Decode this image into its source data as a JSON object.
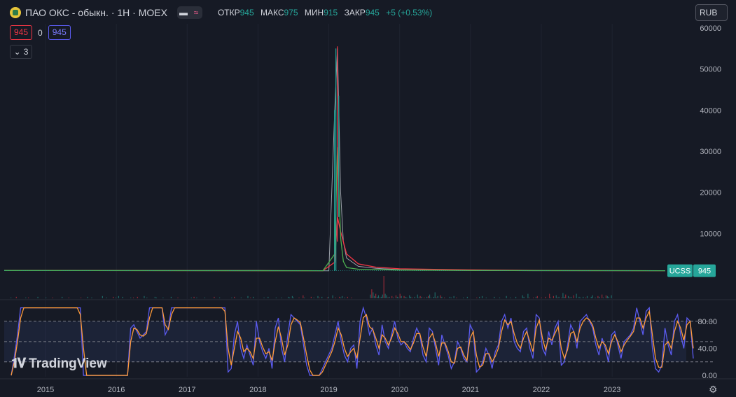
{
  "header": {
    "title": "ПАО ОКС - обыкн. · 1Н · MOEX",
    "ohlc": {
      "open_label": "ОТКР",
      "open": "945",
      "high_label": "МАКС",
      "high": "975",
      "low_label": "МИН",
      "low": "915",
      "close_label": "ЗАКР",
      "close": "945",
      "change": "+5 (+0.53%)"
    },
    "icons": [
      "company-logo-icon",
      "minus-icon",
      "wave-icon"
    ]
  },
  "indicator_row": {
    "sell_price": "945",
    "spread": "0",
    "buy_price": "945"
  },
  "collapse_indicators": {
    "count": "3",
    "icon": "chevron-down-icon"
  },
  "currency_button": "RUB",
  "watermark": "TradingView",
  "colors": {
    "up": "#26a69a",
    "down": "#f23645",
    "ma_red": "#f23645",
    "ma_green": "#4caf50",
    "stoch_k": "#5b5bf0",
    "stoch_d": "#ff9b38",
    "bg": "#161a25"
  },
  "chart_data": [
    {
      "type": "line",
      "title": "",
      "ticker_label": "UCSS",
      "last_price": "945",
      "y_ticks": [
        "10000",
        "20000",
        "30000",
        "40000",
        "50000",
        "60000"
      ],
      "ylim": [
        -1000,
        61000
      ],
      "x_ticks": [
        "2015",
        "2016",
        "2017",
        "2018",
        "2019",
        "2020",
        "2021",
        "2022",
        "2023"
      ],
      "x_range": [
        "2014-06",
        "2023-10"
      ],
      "series": [
        {
          "kind": "price",
          "x": [
            "2014-06",
            "2015-01",
            "2016-01",
            "2017-01",
            "2018-01",
            "2019-01",
            "2019-02",
            "2019-02-15",
            "2019-03",
            "2019-03-15",
            "2019-04",
            "2019-06",
            "2019-09",
            "2020-01",
            "2021-01",
            "2022-01",
            "2022-06",
            "2023-01",
            "2023-06",
            "2023-10"
          ],
          "values": [
            1000,
            1000,
            1000,
            1000,
            1000,
            900,
            40000,
            55000,
            20000,
            8000,
            4000,
            2000,
            1500,
            1200,
            1000,
            950,
            950,
            950,
            950,
            945
          ]
        },
        {
          "kind": "ma-red",
          "x": [
            "2014-06",
            "2018-12",
            "2019-02",
            "2019-02-15",
            "2019-03",
            "2019-04",
            "2019-06",
            "2019-09",
            "2020-01",
            "2021-01",
            "2022-01",
            "2023-10"
          ],
          "values": [
            1000,
            950,
            3000,
            14000,
            10500,
            5000,
            2600,
            1800,
            1400,
            1150,
            1000,
            950
          ]
        },
        {
          "kind": "ma-green",
          "x": [
            "2014-06",
            "2018-12",
            "2019-02",
            "2019-02-15",
            "2019-03",
            "2019-03-15",
            "2019-04",
            "2019-06",
            "2020-01",
            "2021-01",
            "2023-10"
          ],
          "values": [
            1000,
            950,
            5000,
            31000,
            9000,
            3200,
            1700,
            1300,
            1100,
            1000,
            950
          ]
        }
      ],
      "volume": {
        "values": [
          0,
          0,
          0,
          0,
          0,
          1,
          0,
          0,
          0,
          2,
          0,
          0,
          0,
          0,
          0,
          0,
          1,
          0,
          1,
          0,
          0,
          0,
          0,
          0,
          0,
          2,
          0,
          0,
          0,
          0,
          0,
          1,
          0,
          0,
          0,
          0,
          1,
          0,
          0,
          0,
          0,
          0,
          0,
          2,
          0,
          0,
          0,
          0,
          1,
          0,
          0,
          0,
          0,
          0,
          0,
          0,
          0,
          1,
          0,
          0,
          0,
          0,
          2,
          0,
          0,
          1,
          0,
          0,
          0,
          0,
          0,
          0,
          0,
          3,
          0,
          0,
          1,
          0,
          0,
          0,
          0,
          2,
          0,
          1,
          0,
          3,
          0,
          0,
          2,
          0,
          0,
          0,
          0,
          0,
          1,
          0,
          1,
          0,
          0,
          2,
          0,
          0,
          0,
          0,
          3,
          0,
          1,
          0,
          0,
          0,
          0,
          0,
          2,
          1,
          0,
          0,
          0,
          0,
          1,
          0,
          0,
          0,
          0,
          0,
          2,
          0,
          0,
          0,
          0,
          1,
          0,
          0,
          0,
          0,
          0,
          0,
          0,
          0,
          0,
          1,
          0,
          2,
          0,
          1,
          0,
          0,
          0,
          0,
          0,
          1,
          0,
          0,
          0,
          0,
          0,
          0,
          2,
          0,
          0,
          0,
          1,
          0,
          0,
          0,
          0,
          0,
          0,
          0,
          0,
          1,
          0,
          2,
          0,
          0,
          0,
          0,
          1,
          0,
          0,
          0,
          0,
          3,
          0,
          1,
          0,
          2,
          0,
          0,
          0,
          0,
          0,
          0,
          0,
          1,
          0,
          0,
          2,
          0,
          0,
          0,
          0,
          0,
          1,
          0,
          0,
          0,
          1,
          0,
          0,
          0,
          0,
          2,
          1,
          0,
          3,
          1,
          0,
          0,
          0,
          1,
          0,
          0,
          4,
          1,
          0,
          0,
          0,
          0,
          2,
          0,
          1,
          0,
          0,
          3,
          1,
          0,
          2,
          0,
          0,
          0,
          1,
          2,
          0,
          0,
          4,
          0,
          1,
          0,
          0,
          2,
          1,
          3,
          0,
          1,
          0,
          2,
          0,
          0,
          1,
          0,
          0,
          0,
          0,
          0,
          0,
          0,
          0,
          0,
          0,
          0,
          0,
          0,
          5,
          12,
          8,
          3,
          6,
          2,
          4,
          1,
          2,
          5,
          30,
          6,
          4,
          1,
          2,
          0,
          3,
          1,
          0,
          4,
          2,
          1,
          6,
          3,
          0,
          3,
          2,
          1,
          0,
          4,
          2,
          1,
          0,
          2,
          0,
          5,
          1,
          3,
          2,
          0,
          1,
          0,
          2,
          3,
          5,
          1,
          0,
          2,
          8,
          1,
          3,
          0,
          4,
          2,
          0,
          1,
          0,
          0,
          0,
          2,
          1,
          0,
          3,
          0,
          1,
          0,
          0,
          0,
          0,
          1,
          0,
          0,
          2,
          0,
          0,
          0,
          0,
          0,
          0,
          1,
          0,
          2,
          0,
          3,
          0,
          0,
          1,
          0,
          0,
          0,
          0,
          0,
          2,
          0,
          0,
          0,
          1,
          0,
          0,
          0,
          0,
          3,
          0,
          0,
          1,
          0,
          0,
          0,
          2,
          0,
          0,
          0,
          0,
          4,
          2,
          0,
          0,
          6,
          1,
          0,
          0,
          1,
          0,
          2,
          3,
          0,
          0,
          1,
          0,
          0,
          2,
          0,
          0,
          6,
          1,
          0,
          3,
          0,
          4,
          1,
          2,
          0,
          1,
          7,
          2,
          5,
          0,
          3,
          1,
          2,
          0,
          4,
          0,
          6,
          0,
          2,
          1,
          0,
          2,
          0,
          1,
          3,
          0,
          0,
          2,
          4,
          0,
          1,
          0,
          3,
          2,
          0,
          5,
          1,
          0,
          4,
          3,
          2,
          0,
          4,
          0,
          0,
          0,
          0,
          0,
          0,
          0,
          0,
          0,
          0,
          0,
          0,
          0,
          0,
          0,
          0,
          0,
          0,
          0,
          0,
          0,
          0,
          0,
          0,
          0,
          0,
          0,
          0,
          0,
          0,
          0,
          0,
          0,
          0,
          0,
          0,
          0,
          0,
          0,
          0
        ]
      }
    },
    {
      "type": "line",
      "title": "",
      "y_ticks": [
        "0.00",
        "40.00",
        "80.00"
      ],
      "ylim": [
        -2,
        110
      ],
      "bands": [
        20,
        50,
        80
      ],
      "series": [
        {
          "kind": "stoch-k",
          "values": [
            0,
            28,
            60,
            100,
            100,
            100,
            100,
            100,
            100,
            100,
            100,
            100,
            100,
            100,
            100,
            100,
            100,
            100,
            100,
            100,
            100,
            100,
            100,
            0,
            0,
            0,
            0,
            0,
            0,
            0,
            0,
            0,
            0,
            0,
            0,
            0,
            0,
            0,
            70,
            75,
            65,
            55,
            60,
            65,
            100,
            100,
            100,
            100,
            100,
            60,
            70,
            100,
            100,
            100,
            100,
            100,
            100,
            100,
            100,
            100,
            100,
            100,
            100,
            100,
            100,
            100,
            100,
            100,
            100,
            5,
            10,
            60,
            80,
            40,
            25,
            45,
            30,
            15,
            80,
            50,
            35,
            25,
            40,
            10,
            70,
            85,
            40,
            20,
            60,
            90,
            85,
            80,
            75,
            45,
            15,
            0,
            0,
            0,
            0,
            10,
            20,
            30,
            40,
            60,
            80,
            50,
            30,
            20,
            40,
            45,
            10,
            80,
            100,
            85,
            60,
            70,
            45,
            30,
            75,
            50,
            40,
            60,
            80,
            55,
            45,
            50,
            40,
            35,
            55,
            70,
            60,
            30,
            20,
            70,
            65,
            40,
            15,
            60,
            45,
            30,
            10,
            20,
            50,
            40,
            25,
            20,
            75,
            65,
            5,
            10,
            20,
            40,
            30,
            10,
            35,
            45,
            80,
            90,
            70,
            85,
            50,
            40,
            35,
            65,
            70,
            40,
            25,
            90,
            85,
            40,
            30,
            65,
            45,
            70,
            80,
            15,
            20,
            45,
            75,
            65,
            40,
            80,
            85,
            90,
            80,
            70,
            45,
            30,
            55,
            40,
            20,
            60,
            65,
            45,
            25,
            50,
            55,
            60,
            70,
            100,
            80,
            60,
            95,
            100,
            40,
            10,
            5,
            15,
            70,
            45,
            30,
            80,
            90,
            60,
            40,
            85,
            80,
            25
          ]
        },
        {
          "kind": "stoch-d",
          "values": [
            0,
            20,
            50,
            85,
            100,
            100,
            100,
            100,
            100,
            100,
            100,
            100,
            100,
            100,
            100,
            100,
            100,
            100,
            100,
            100,
            100,
            100,
            90,
            40,
            0,
            0,
            0,
            0,
            0,
            0,
            0,
            0,
            0,
            0,
            0,
            0,
            0,
            0,
            50,
            70,
            68,
            60,
            58,
            62,
            85,
            100,
            100,
            100,
            100,
            75,
            68,
            90,
            100,
            100,
            100,
            100,
            100,
            100,
            100,
            100,
            100,
            100,
            100,
            100,
            100,
            100,
            100,
            100,
            95,
            40,
            15,
            40,
            65,
            55,
            35,
            40,
            35,
            25,
            55,
            55,
            42,
            32,
            35,
            22,
            50,
            72,
            55,
            30,
            45,
            75,
            85,
            82,
            78,
            55,
            30,
            8,
            0,
            0,
            0,
            5,
            15,
            25,
            35,
            50,
            70,
            60,
            40,
            28,
            35,
            40,
            25,
            55,
            85,
            90,
            72,
            68,
            55,
            40,
            60,
            55,
            45,
            55,
            70,
            62,
            50,
            50,
            45,
            38,
            48,
            62,
            62,
            42,
            28,
            55,
            62,
            48,
            28,
            48,
            48,
            36,
            20,
            18,
            40,
            42,
            30,
            22,
            55,
            65,
            30,
            12,
            15,
            32,
            32,
            20,
            28,
            40,
            65,
            82,
            75,
            80,
            62,
            48,
            40,
            55,
            65,
            50,
            35,
            70,
            82,
            55,
            38,
            55,
            52,
            62,
            72,
            40,
            25,
            38,
            62,
            65,
            50,
            70,
            80,
            85,
            82,
            74,
            55,
            40,
            50,
            45,
            32,
            50,
            60,
            50,
            35,
            45,
            52,
            58,
            65,
            85,
            85,
            70,
            85,
            95,
            60,
            25,
            12,
            12,
            45,
            50,
            40,
            65,
            80,
            70,
            52,
            75,
            80,
            40
          ]
        }
      ]
    }
  ]
}
